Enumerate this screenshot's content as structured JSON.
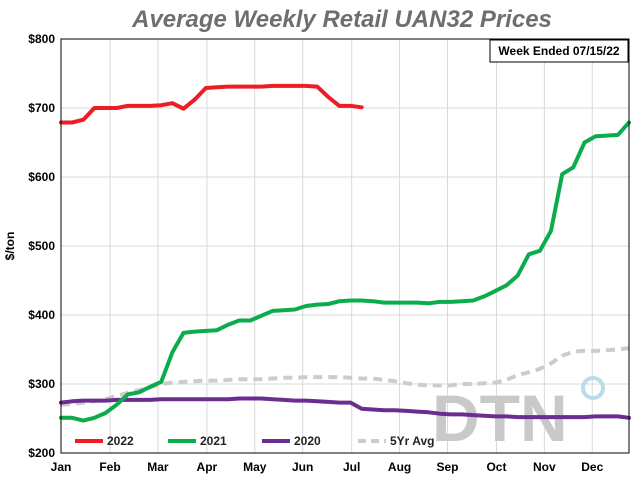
{
  "chart_data": {
    "type": "line",
    "title": "Average Weekly Retail UAN32 Prices",
    "annotation": "Week Ended 07/15/22",
    "xlabel": "",
    "ylabel": "$/ton",
    "ylim": [
      200,
      800
    ],
    "yticks": [
      200,
      300,
      400,
      500,
      600,
      700,
      800
    ],
    "ytick_labels": [
      "$200",
      "$300",
      "$400",
      "$500",
      "$600",
      "$700",
      "$800"
    ],
    "x_unit": "week of year",
    "xlim": [
      1,
      52
    ],
    "xticks": [
      1,
      5.4,
      9.7,
      14.1,
      18.4,
      22.7,
      27.1,
      31.4,
      35.7,
      40.1,
      44.4,
      48.7
    ],
    "xtick_labels": [
      "Jan",
      "Feb",
      "Mar",
      "Apr",
      "May",
      "Jun",
      "Jul",
      "Aug",
      "Sep",
      "Oct",
      "Nov",
      "Dec"
    ],
    "grid": true,
    "legend_position": "bottom-left",
    "watermark": "DTN",
    "series": [
      {
        "name": "2022",
        "color": "#ee1c25",
        "dashed": false,
        "x": [
          1,
          2,
          3,
          4,
          5,
          6,
          7,
          8,
          9,
          10,
          11,
          12,
          13,
          14,
          15,
          16,
          17,
          18,
          19,
          20,
          21,
          22,
          23,
          24,
          25,
          26,
          27,
          28
        ],
        "y": [
          679,
          679,
          683,
          700,
          700,
          700,
          703,
          703,
          703,
          704,
          707,
          699,
          712,
          729,
          730,
          731,
          731,
          731,
          731,
          732,
          732,
          732,
          732,
          731,
          716,
          703,
          703,
          701
        ]
      },
      {
        "name": "2021",
        "color": "#0bac4b",
        "dashed": false,
        "x": [
          1,
          2,
          3,
          4,
          5,
          6,
          7,
          8,
          9,
          10,
          11,
          12,
          13,
          14,
          15,
          16,
          17,
          18,
          19,
          20,
          21,
          22,
          23,
          24,
          25,
          26,
          27,
          28,
          29,
          30,
          31,
          32,
          33,
          34,
          35,
          36,
          37,
          38,
          39,
          40,
          41,
          42,
          43,
          44,
          45,
          46,
          47,
          48,
          49,
          50,
          51,
          52
        ],
        "y": [
          251,
          251,
          247,
          251,
          258,
          270,
          285,
          288,
          296,
          303,
          346,
          374,
          376,
          377,
          378,
          386,
          392,
          392,
          399,
          406,
          407,
          408,
          413,
          415,
          416,
          420,
          421,
          421,
          420,
          418,
          418,
          418,
          418,
          417,
          419,
          419,
          420,
          421,
          427,
          435,
          443,
          457,
          488,
          493,
          522,
          604,
          614,
          650,
          659,
          660,
          661,
          679
        ]
      },
      {
        "name": "2020",
        "color": "#6a2d91",
        "dashed": false,
        "x": [
          1,
          2,
          3,
          4,
          5,
          6,
          7,
          8,
          9,
          10,
          11,
          12,
          13,
          14,
          15,
          16,
          17,
          18,
          19,
          20,
          21,
          22,
          23,
          24,
          25,
          26,
          27,
          28,
          29,
          30,
          31,
          32,
          33,
          34,
          35,
          36,
          37,
          38,
          39,
          40,
          41,
          42,
          43,
          44,
          45,
          46,
          47,
          48,
          49,
          50,
          51,
          52
        ],
        "y": [
          273,
          275,
          276,
          276,
          276,
          277,
          277,
          277,
          277,
          278,
          278,
          278,
          278,
          278,
          278,
          278,
          279,
          279,
          279,
          278,
          277,
          276,
          276,
          275,
          274,
          273,
          273,
          264,
          263,
          262,
          262,
          261,
          260,
          259,
          257,
          256,
          256,
          255,
          254,
          253,
          253,
          252,
          252,
          252,
          252,
          252,
          252,
          252,
          253,
          253,
          253,
          251
        ]
      },
      {
        "name": "5Yr Avg",
        "color": "#cccccc",
        "dashed": true,
        "x": [
          1,
          2,
          3,
          4,
          5,
          6,
          7,
          8,
          9,
          10,
          11,
          12,
          13,
          14,
          15,
          16,
          17,
          18,
          19,
          20,
          21,
          22,
          23,
          24,
          25,
          26,
          27,
          28,
          29,
          30,
          31,
          32,
          33,
          34,
          35,
          36,
          37,
          38,
          39,
          40,
          41,
          42,
          43,
          44,
          45,
          46,
          47,
          48,
          49,
          50,
          51,
          52
        ],
        "y": [
          270,
          271,
          273,
          275,
          278,
          283,
          287,
          291,
          295,
          300,
          302,
          303,
          304,
          305,
          305,
          306,
          307,
          307,
          307,
          308,
          309,
          309,
          310,
          310,
          310,
          310,
          309,
          308,
          308,
          306,
          304,
          301,
          299,
          298,
          298,
          298,
          300,
          300,
          301,
          302,
          306,
          313,
          317,
          322,
          330,
          341,
          347,
          348,
          348,
          349,
          350,
          352
        ]
      }
    ]
  }
}
